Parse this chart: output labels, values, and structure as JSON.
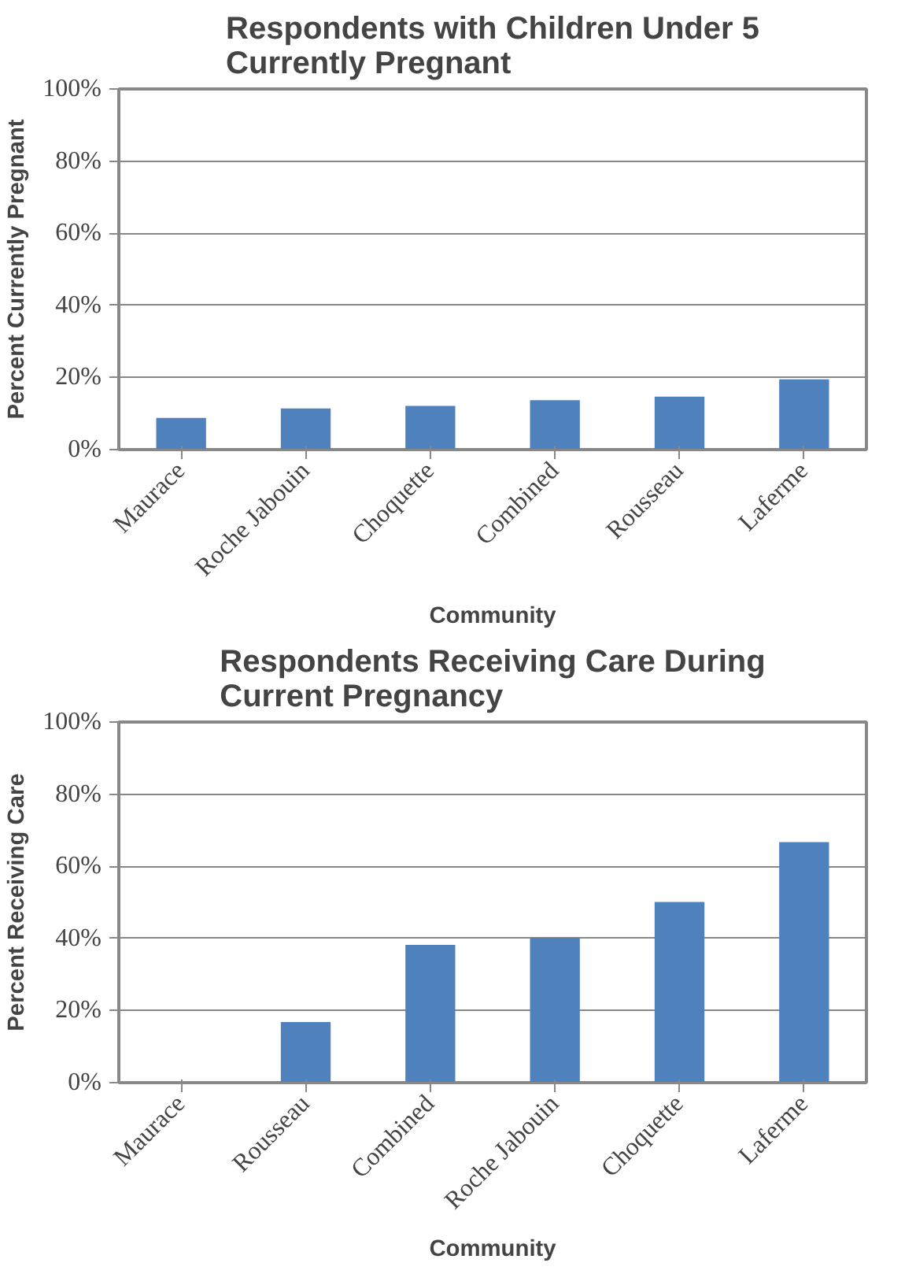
{
  "chart_data": [
    {
      "type": "bar",
      "title": "Respondents with Children Under 5 Currently Pregnant",
      "xlabel": "Community",
      "ylabel": "Percent Currently Pregnant",
      "categories": [
        "Maurace",
        "Roche Jabouin",
        "Choquette",
        "Combined",
        "Rousseau",
        "Laferme"
      ],
      "values": [
        8.8,
        11.4,
        12.1,
        13.7,
        14.7,
        19.5
      ],
      "color": "#4f81bd",
      "ylim": [
        0,
        100
      ],
      "yticks": [
        {
          "value": 0,
          "label": "0%"
        },
        {
          "value": 20,
          "label": "20%"
        },
        {
          "value": 40,
          "label": "40%"
        },
        {
          "value": 60,
          "label": "60%"
        },
        {
          "value": 80,
          "label": "80%"
        },
        {
          "value": 100,
          "label": "100%"
        }
      ],
      "grid": "y"
    },
    {
      "type": "bar",
      "title": "Respondents Receiving Care During Current Pregnancy",
      "xlabel": "Community",
      "ylabel": "Percent Receiving Care",
      "categories": [
        "Maurace",
        "Rousseau",
        "Combined",
        "Roche Jabouin",
        "Choquette",
        "Laferme"
      ],
      "values": [
        0,
        16.8,
        38.2,
        40.2,
        50.1,
        66.7
      ],
      "color": "#4f81bd",
      "ylim": [
        0,
        100
      ],
      "yticks": [
        {
          "value": 0,
          "label": "0%"
        },
        {
          "value": 20,
          "label": "20%"
        },
        {
          "value": 40,
          "label": "40%"
        },
        {
          "value": 60,
          "label": "60%"
        },
        {
          "value": 80,
          "label": "80%"
        },
        {
          "value": 100,
          "label": "100%"
        }
      ],
      "grid": "y"
    }
  ]
}
